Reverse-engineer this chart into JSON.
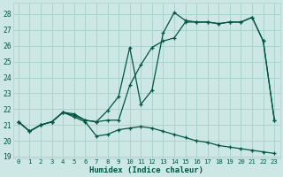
{
  "xlabel": "Humidex (Indice chaleur)",
  "background_color": "#cde8e4",
  "grid_color": "#aad5cc",
  "line_color": "#005544",
  "xlim": [
    -0.5,
    23.5
  ],
  "ylim": [
    18.9,
    28.7
  ],
  "yticks": [
    19,
    20,
    21,
    22,
    23,
    24,
    25,
    26,
    27,
    28
  ],
  "xticks": [
    0,
    1,
    2,
    3,
    4,
    5,
    6,
    7,
    8,
    9,
    10,
    11,
    12,
    13,
    14,
    15,
    16,
    17,
    18,
    19,
    20,
    21,
    22,
    23
  ],
  "line_bottom_y": [
    21.2,
    20.6,
    21.0,
    21.2,
    21.8,
    21.5,
    21.2,
    20.3,
    20.4,
    20.7,
    20.8,
    20.9,
    20.8,
    20.6,
    20.4,
    20.2,
    20.0,
    19.9,
    19.7,
    19.6,
    19.5,
    19.4,
    19.3,
    19.2
  ],
  "line_top_y": [
    21.2,
    20.6,
    21.0,
    21.2,
    21.8,
    21.6,
    21.3,
    21.2,
    21.9,
    22.8,
    25.9,
    22.3,
    23.2,
    26.8,
    28.1,
    27.6,
    27.5,
    27.5,
    27.4,
    27.5,
    27.5,
    27.8,
    26.3,
    21.3
  ],
  "line_mid_y": [
    21.2,
    20.6,
    21.0,
    21.2,
    21.8,
    21.7,
    21.3,
    21.2,
    21.3,
    21.3,
    23.5,
    24.8,
    25.9,
    26.3,
    26.5,
    27.5,
    27.5,
    27.5,
    27.4,
    27.5,
    27.5,
    27.8,
    26.3,
    21.3
  ]
}
